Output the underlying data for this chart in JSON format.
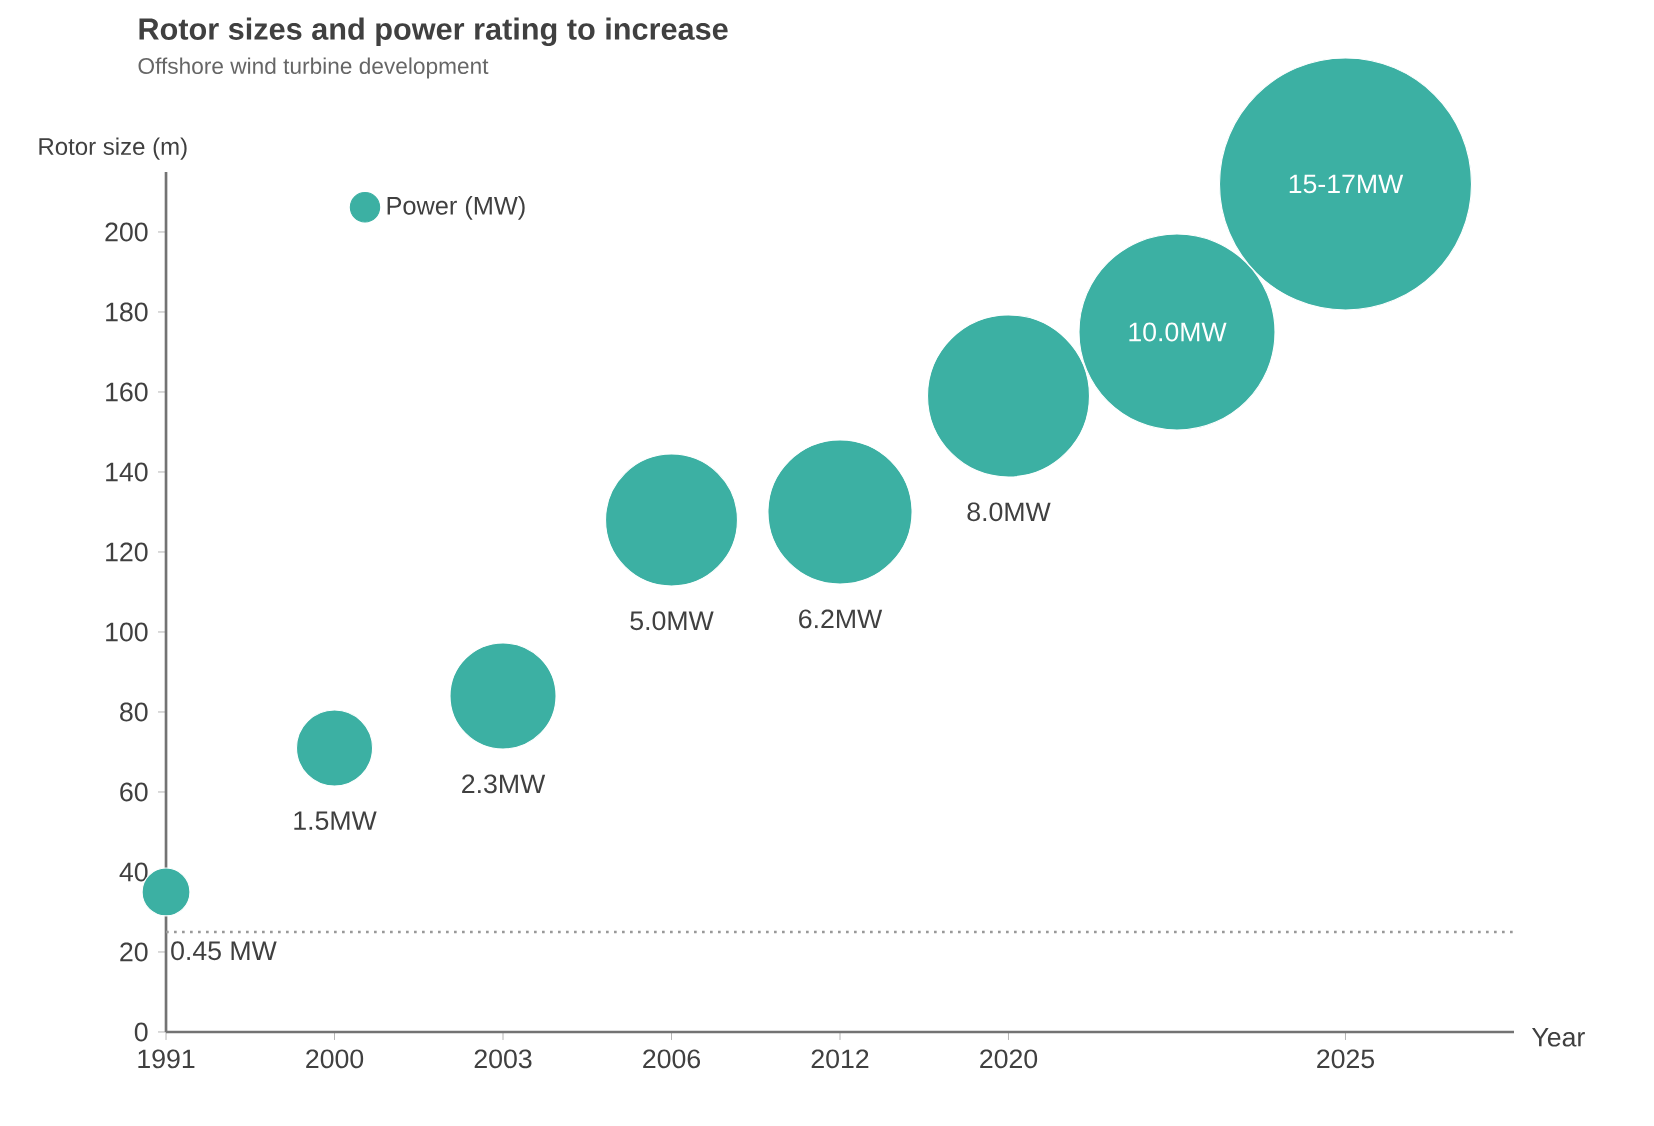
{
  "chart_data": {
    "type": "bubble",
    "title": "Rotor sizes and power rating to increase",
    "subtitle": "Offshore wind turbine development",
    "ylabel": "Rotor size (m)",
    "xlabel": "Year",
    "categories": [
      "1991",
      "2000",
      "2003",
      "2006",
      "2012",
      "2020",
      null,
      "2025"
    ],
    "series": [
      {
        "name": "Power (MW)",
        "color": "#3cb0a3",
        "values": [
          35,
          71,
          84,
          128,
          130,
          159,
          175,
          212
        ],
        "sizes": [
          0.036,
          0.091,
          0.177,
          0.274,
          0.327,
          0.413,
          0.605,
          1
        ]
      }
    ],
    "ylim": [
      0,
      215
    ],
    "yticks": [
      0,
      20,
      40,
      60,
      80,
      100,
      120,
      140,
      160,
      180,
      200
    ],
    "ref_lines": [
      {
        "axis": "y",
        "value": 25,
        "color": "#999999",
        "line_style": "dotted"
      }
    ],
    "annotations": [
      {
        "text": "0.45 MW",
        "x": "1991",
        "y": 35
      },
      {
        "text": "1.5MW",
        "x": "2000",
        "y": 71
      },
      {
        "text": "2.3MW",
        "x": "2003",
        "y": 84
      },
      "5.0MW",
      "6.2MW",
      "8.0MW",
      {
        "text": "10.0MW",
        "y": 175
      },
      {
        "text": "15-17MW",
        "x": "2025",
        "y": 212
      }
    ],
    "legend": "top left",
    "marker": "circle"
  }
}
